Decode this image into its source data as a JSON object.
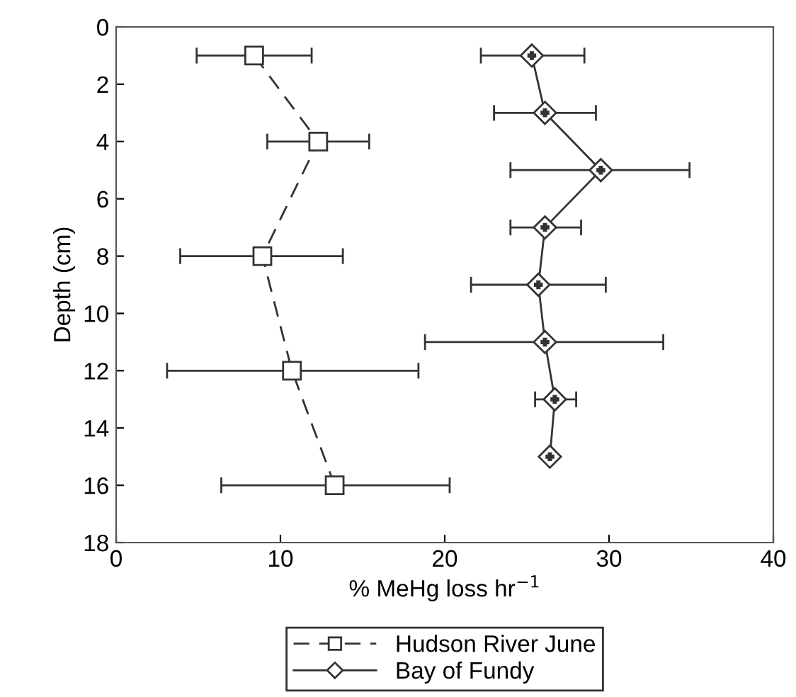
{
  "chart_data": {
    "type": "line",
    "xlabel": "% MeHg loss hr$^{−1}$",
    "ylabel": "Depth (cm)",
    "xlim": [
      0,
      40
    ],
    "xticks": [
      0,
      10,
      20,
      30,
      40
    ],
    "ylim": [
      18,
      0
    ],
    "yticks": [
      0,
      2,
      4,
      6,
      8,
      10,
      12,
      14,
      16,
      18
    ],
    "grid": false,
    "legend": "bottom",
    "series": [
      {
        "name": "Hudson River June",
        "color": "#333333",
        "marker": "square",
        "line_style": "dashed",
        "x": [
          8.4,
          12.3,
          8.9,
          10.7,
          13.3
        ],
        "values": [
          1,
          4,
          8,
          12,
          16
        ],
        "xerrors": [
          [
            4.9,
            11.9
          ],
          [
            9.2,
            15.4
          ],
          [
            3.9,
            13.8
          ],
          [
            3.1,
            18.4
          ],
          [
            6.4,
            20.3
          ]
        ]
      },
      {
        "name": "Bay of Fundy",
        "color": "#333333",
        "marker": "diamond",
        "line_style": "solid",
        "x": [
          25.3,
          26.1,
          29.5,
          26.1,
          25.7,
          26.1,
          26.7,
          26.4
        ],
        "values": [
          1,
          3,
          5,
          7,
          9,
          11,
          13,
          15
        ],
        "xerrors": [
          [
            22.2,
            28.5
          ],
          [
            23.0,
            29.2
          ],
          [
            24.0,
            34.9
          ],
          [
            24.0,
            28.3
          ],
          [
            21.6,
            29.8
          ],
          [
            18.8,
            33.3
          ],
          [
            25.5,
            28.0
          ],
          null
        ]
      }
    ]
  }
}
